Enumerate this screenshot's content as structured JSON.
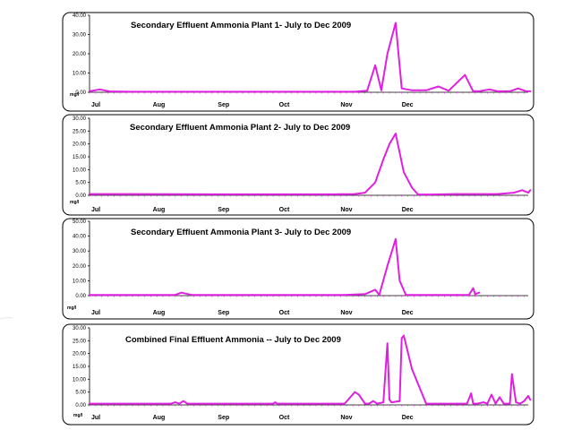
{
  "chart_data": [
    {
      "type": "line",
      "title": "Secondary Effluent Ammonia Plant 1- July to Dec 2009",
      "ylabel": "mg/l",
      "ylim": [
        0,
        40
      ],
      "y_ticks": [
        "0.00",
        "10.00",
        "20.00",
        "30.00",
        "40.00"
      ],
      "months": [
        "Jul",
        "Aug",
        "Sep",
        "Oct",
        "Nov",
        "Dec"
      ],
      "color": "#e020e0",
      "series": [
        {
          "x": [
            0,
            5,
            10,
            20,
            40,
            60,
            80,
            100,
            120,
            130,
            136,
            140,
            143,
            146,
            150,
            153,
            158,
            165,
            171,
            176,
            184,
            188,
            191,
            196,
            200,
            206,
            210,
            214,
            216
          ],
          "values": [
            0.5,
            1.5,
            0.4,
            0.3,
            0.3,
            0.3,
            0.3,
            0.3,
            0.3,
            0.3,
            0.8,
            14.0,
            1.0,
            20.0,
            36.0,
            2.0,
            1.0,
            1.0,
            3.0,
            0.8,
            9.0,
            0.5,
            0.5,
            1.5,
            0.5,
            0.5,
            2.0,
            0.5,
            0.5
          ]
        }
      ]
    },
    {
      "type": "line",
      "title": "Secondary Effluent Ammonia Plant 2- July to Dec 2009",
      "ylabel": "mg/l",
      "ylim": [
        0,
        30
      ],
      "y_ticks": [
        "0.00",
        "5.00",
        "10.00",
        "15.00",
        "20.00",
        "25.00",
        "30.00"
      ],
      "months": [
        "Jul",
        "Aug",
        "Sep",
        "Oct",
        "Nov",
        "Dec"
      ],
      "color": "#e020e0",
      "series": [
        {
          "x": [
            0,
            20,
            60,
            100,
            120,
            130,
            135,
            140,
            144,
            147,
            150,
            154,
            158,
            161,
            166,
            180,
            200,
            208,
            212,
            215,
            216
          ],
          "values": [
            0.5,
            0.5,
            0.4,
            0.4,
            0.4,
            0.5,
            1.0,
            5.0,
            14.0,
            20.0,
            24.0,
            9.0,
            3.0,
            0.3,
            0.3,
            0.5,
            0.5,
            1.0,
            2.0,
            1.0,
            2.0
          ]
        }
      ]
    },
    {
      "type": "line",
      "title": "Secondary Effluent Ammonia Plant 3- July to Dec 2009",
      "ylabel": "mg/l",
      "ylim": [
        0,
        50
      ],
      "y_ticks": [
        "0.00",
        "10.00",
        "20.00",
        "30.00",
        "40.00",
        "50.00"
      ],
      "months": [
        "Jul",
        "Aug",
        "Sep",
        "Oct",
        "Nov",
        "Dec"
      ],
      "color": "#e020e0",
      "series": [
        {
          "x": [
            0,
            30,
            42,
            45,
            50,
            80,
            110,
            125,
            135,
            140,
            142,
            146,
            150,
            152,
            155,
            170,
            180,
            186,
            188,
            189,
            191
          ],
          "values": [
            0.5,
            0.5,
            0.5,
            2.0,
            0.5,
            0.5,
            0.5,
            0.5,
            1.0,
            4.0,
            0.5,
            20.0,
            38.0,
            10.0,
            0.5,
            0.5,
            0.5,
            0.5,
            5.0,
            1.0,
            2.0
          ]
        }
      ]
    },
    {
      "type": "line",
      "title": "Combined Final Effluent Ammonia -- July to Dec 2009",
      "ylabel": "mg/l",
      "ylim": [
        0,
        30
      ],
      "y_ticks": [
        "0.00",
        "5.00",
        "10.00",
        "15.00",
        "20.00",
        "25.00",
        "30.00"
      ],
      "months": [
        "Jul",
        "Aug",
        "Sep",
        "Oct",
        "Nov",
        "Dec"
      ],
      "color": "#e020e0",
      "series": [
        {
          "x": [
            0,
            20,
            40,
            42,
            44,
            46,
            48,
            70,
            90,
            91,
            92,
            93,
            95,
            98,
            100,
            110,
            125,
            130,
            132,
            135,
            137,
            139,
            141,
            144,
            146,
            147,
            148,
            152,
            153,
            154,
            158,
            165,
            172,
            180,
            185,
            187,
            188,
            190,
            193,
            195,
            197,
            199,
            201,
            203,
            206,
            207,
            209,
            211,
            213,
            215,
            216
          ],
          "values": [
            0.5,
            0.5,
            0.5,
            1.0,
            0.5,
            1.5,
            0.5,
            0.5,
            0.5,
            1.0,
            0.5,
            0.5,
            0.5,
            0.5,
            0.5,
            0.5,
            0.5,
            5.0,
            4.0,
            0.5,
            0.5,
            1.5,
            0.5,
            1.0,
            24.0,
            2.0,
            1.0,
            1.5,
            26.0,
            27.0,
            14.0,
            0.5,
            0.5,
            0.5,
            0.5,
            4.5,
            0.5,
            0.5,
            1.0,
            0.5,
            4.0,
            0.5,
            3.0,
            0.5,
            0.5,
            12.0,
            1.0,
            0.5,
            1.5,
            3.5,
            2.0
          ]
        }
      ]
    }
  ]
}
